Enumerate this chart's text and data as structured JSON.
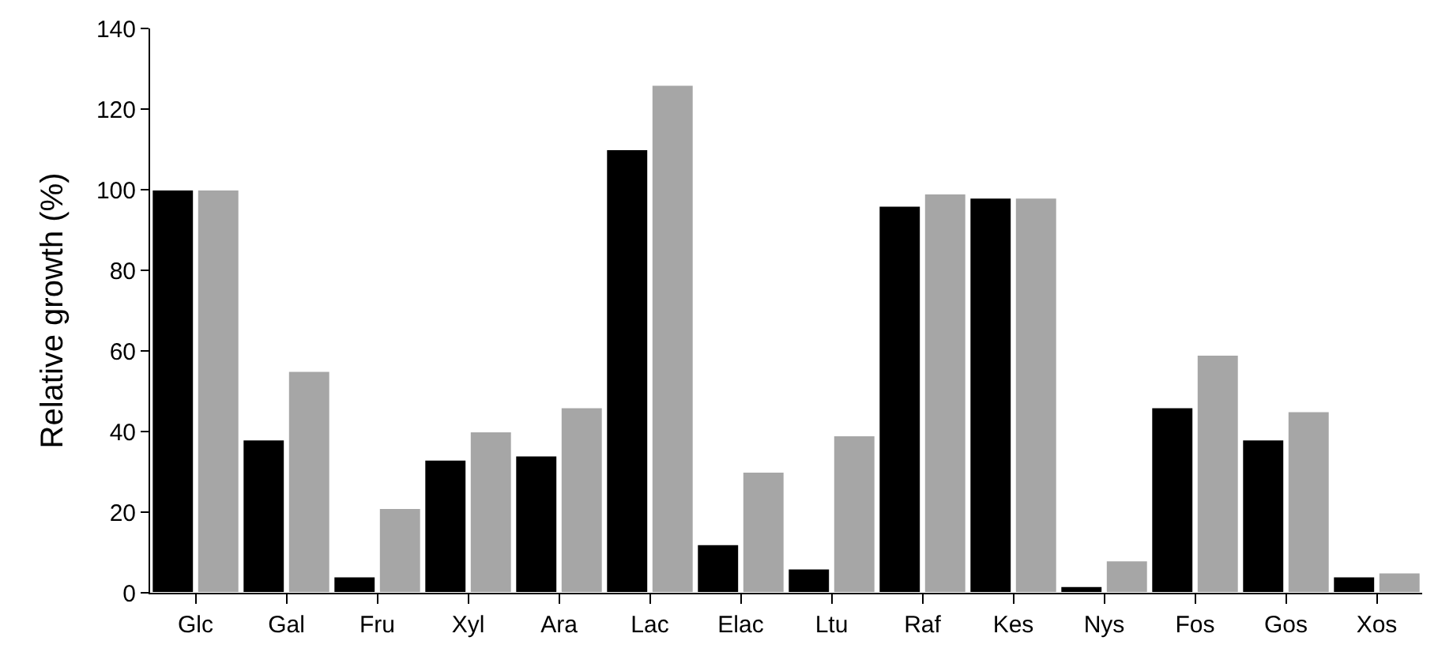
{
  "chart_data": {
    "type": "bar",
    "ylabel": "Relative growth (%)",
    "categories": [
      "Glc",
      "Gal",
      "Fru",
      "Xyl",
      "Ara",
      "Lac",
      "Elac",
      "Ltu",
      "Raf",
      "Kes",
      "Nys",
      "Fos",
      "Gos",
      "Xos"
    ],
    "series": [
      {
        "color": "#000000",
        "values": [
          100,
          38,
          4,
          33,
          34,
          110,
          12,
          6,
          96,
          98,
          1.6,
          46,
          38,
          4
        ]
      },
      {
        "color": "#a6a6a6",
        "values": [
          100,
          55,
          21,
          40,
          46,
          126,
          30,
          39,
          99,
          98,
          8,
          59,
          45,
          5
        ]
      }
    ],
    "ylim": [
      0,
      140
    ],
    "yticks": [
      0,
      20,
      40,
      60,
      80,
      100,
      120,
      140
    ]
  }
}
